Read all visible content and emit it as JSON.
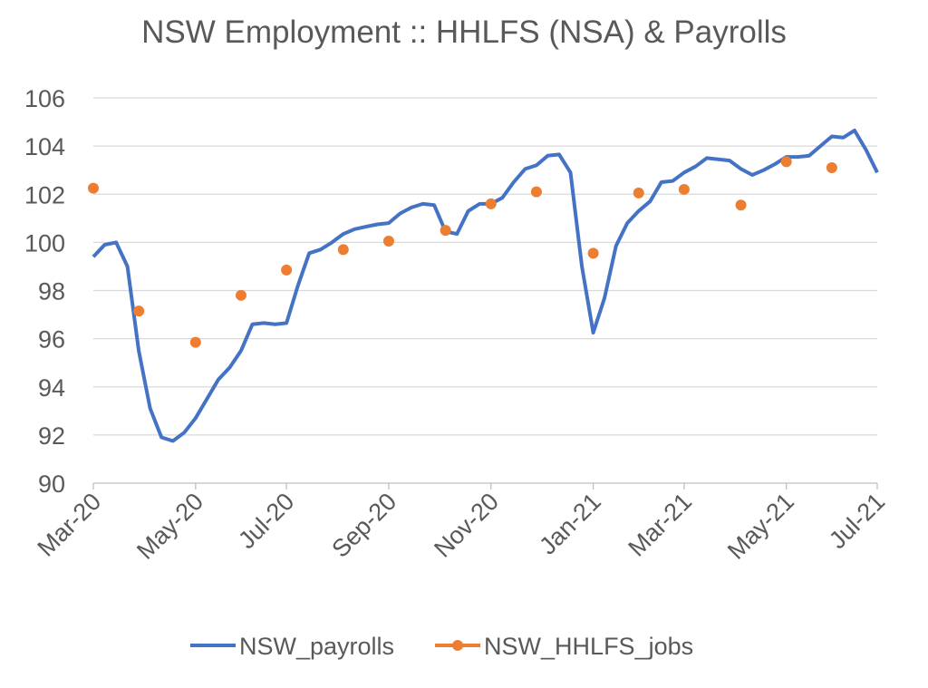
{
  "chart_data": {
    "type": "line",
    "title": "NSW Employment :: HHLFS (NSA) & Payrolls",
    "categories": [
      "Mar-20",
      null,
      null,
      null,
      null,
      null,
      null,
      null,
      null,
      "May-20",
      null,
      null,
      null,
      null,
      null,
      null,
      null,
      "Jul-20",
      null,
      null,
      null,
      null,
      null,
      null,
      null,
      null,
      "Sep-20",
      null,
      null,
      null,
      null,
      null,
      null,
      null,
      null,
      "Nov-20",
      null,
      null,
      null,
      null,
      null,
      null,
      null,
      null,
      "Jan-21",
      null,
      null,
      null,
      null,
      null,
      null,
      null,
      "Mar-21",
      null,
      null,
      null,
      null,
      null,
      null,
      null,
      null,
      "May-21",
      null,
      null,
      null,
      null,
      null,
      null,
      null,
      "Jul-21"
    ],
    "series": [
      {
        "name": "NSW_payrolls",
        "color": "#4472c4",
        "style": "line",
        "values": [
          99.4,
          99.9,
          100.0,
          99.0,
          95.5,
          93.1,
          91.9,
          91.75,
          92.1,
          92.7,
          93.5,
          94.3,
          94.8,
          95.5,
          96.6,
          96.65,
          96.6,
          96.65,
          98.2,
          99.55,
          99.7,
          100.0,
          100.35,
          100.55,
          100.65,
          100.75,
          100.8,
          101.2,
          101.45,
          101.6,
          101.55,
          100.45,
          100.35,
          101.3,
          101.6,
          101.6,
          101.85,
          102.5,
          103.05,
          103.2,
          103.6,
          103.65,
          102.9,
          99.0,
          96.25,
          97.7,
          99.85,
          100.8,
          101.3,
          101.7,
          102.5,
          102.55,
          102.9,
          103.15,
          103.5,
          103.45,
          103.4,
          103.05,
          102.8,
          103.0,
          103.25,
          103.55,
          103.55,
          103.6,
          104.0,
          104.4,
          104.35,
          104.65,
          103.85,
          102.9
        ]
      },
      {
        "name": "NSW_HHLFS_jobs",
        "color": "#ed7d31",
        "style": "markers",
        "values": [
          102.25,
          null,
          null,
          null,
          97.15,
          null,
          null,
          null,
          null,
          95.85,
          null,
          null,
          null,
          97.8,
          null,
          null,
          null,
          98.85,
          null,
          null,
          null,
          null,
          99.7,
          null,
          null,
          null,
          100.05,
          null,
          null,
          null,
          null,
          100.5,
          null,
          null,
          null,
          101.6,
          null,
          null,
          null,
          102.1,
          null,
          null,
          null,
          null,
          99.55,
          null,
          null,
          null,
          102.05,
          null,
          null,
          null,
          102.2,
          null,
          null,
          null,
          null,
          101.55,
          null,
          null,
          null,
          103.35,
          null,
          null,
          null,
          103.1,
          null,
          null,
          null,
          null
        ]
      }
    ],
    "ylim": [
      90,
      106
    ],
    "yticks": [
      90,
      92,
      94,
      96,
      98,
      100,
      102,
      104,
      106
    ],
    "grid": true,
    "legend": "bottom"
  }
}
